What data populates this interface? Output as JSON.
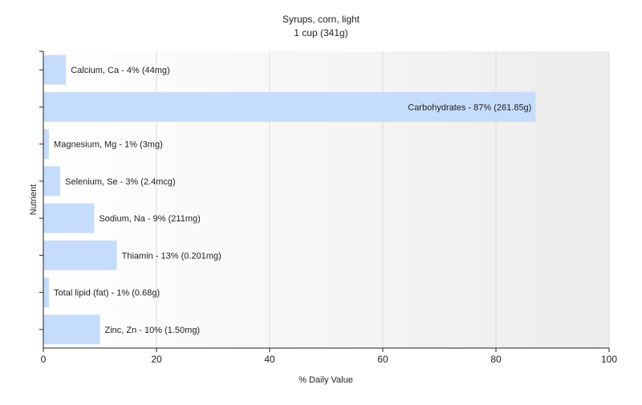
{
  "chart_data": {
    "type": "bar",
    "orientation": "horizontal",
    "title": "Syrups, corn, light",
    "subtitle": "1 cup (341g)",
    "xlabel": "% Daily Value",
    "ylabel": "Nutrient",
    "xlim": [
      0,
      100
    ],
    "xticks": [
      0,
      20,
      40,
      60,
      80,
      100
    ],
    "grid": true,
    "legend": "none",
    "bar_color": "#c6dcfb",
    "categories": [
      "Calcium, Ca",
      "Carbohydrates",
      "Magnesium, Mg",
      "Selenium, Se",
      "Sodium, Na",
      "Thiamin",
      "Total lipid (fat)",
      "Zinc, Zn"
    ],
    "values": [
      4,
      87,
      1,
      3,
      9,
      13,
      1,
      10
    ],
    "labels": [
      "Calcium, Ca - 4% (44mg)",
      "Carbohydrates - 87% (261.85g)",
      "Magnesium, Mg - 1% (3mg)",
      "Selenium, Se - 3% (2.4mcg)",
      "Sodium, Na - 9% (211mg)",
      "Thiamin - 13% (0.201mg)",
      "Total lipid (fat) - 1% (0.68g)",
      "Zinc, Zn - 10% (1.50mg)"
    ]
  }
}
